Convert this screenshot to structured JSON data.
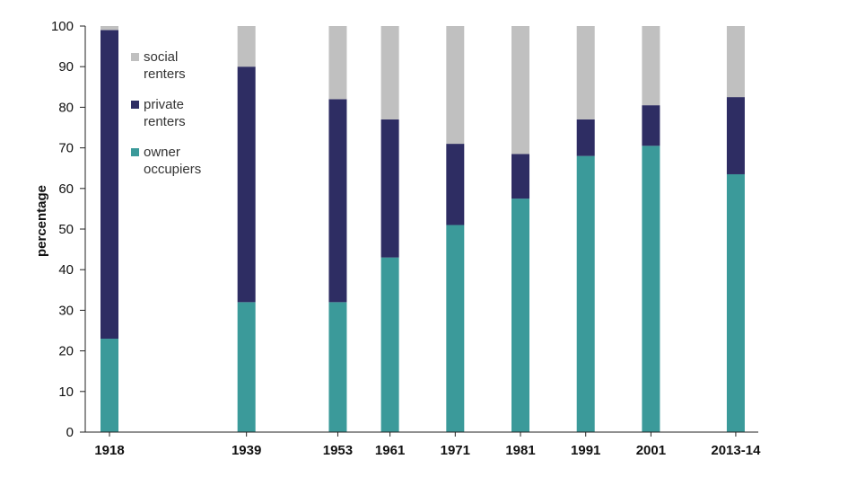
{
  "chart_data": {
    "type": "bar",
    "stacked": true,
    "title": "",
    "xlabel": "",
    "ylabel": "percentage",
    "ylim": [
      0,
      100
    ],
    "y_ticks": [
      0,
      10,
      20,
      30,
      40,
      50,
      60,
      70,
      80,
      90,
      100
    ],
    "categories": [
      "1918",
      "1939",
      "1953",
      "1961",
      "1971",
      "1981",
      "1991",
      "2001",
      "2013-14"
    ],
    "category_x": [
      1918,
      1939,
      1953,
      1961,
      1971,
      1981,
      1991,
      2001,
      2014
    ],
    "grid": false,
    "legend_position": "top-left",
    "legend": [
      {
        "line1": "social",
        "line2": "renters",
        "color": "#c0c0c0"
      },
      {
        "line1": "private",
        "line2": "renters",
        "color": "#2e2d63"
      },
      {
        "line1": "owner",
        "line2": "occupiers",
        "color": "#3b9a9a"
      }
    ],
    "series": [
      {
        "name": "owner occupiers",
        "color": "#3b9a9a",
        "values": [
          23,
          32,
          32,
          43,
          51,
          57.5,
          68,
          70.5,
          63.5
        ]
      },
      {
        "name": "private renters",
        "color": "#2e2d63",
        "values": [
          76,
          58,
          50,
          34,
          20,
          11,
          9,
          10,
          19
        ]
      },
      {
        "name": "social renters",
        "color": "#c0c0c0",
        "values": [
          1,
          10,
          18,
          23,
          29,
          31.5,
          23,
          19.5,
          17.5
        ]
      }
    ]
  }
}
